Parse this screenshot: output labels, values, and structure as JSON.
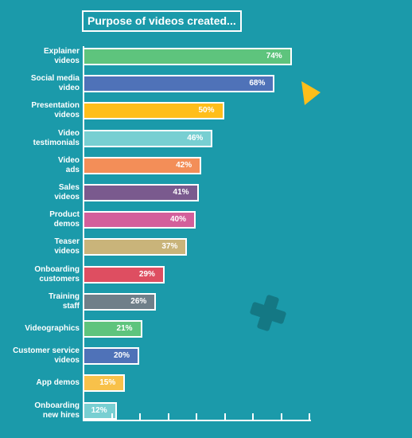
{
  "title": "Purpose of videos created...",
  "chart_data": {
    "type": "bar",
    "orientation": "horizontal",
    "title": "Purpose of videos created...",
    "categories": [
      "Explainer\nvideos",
      "Social media\nvideo",
      "Presentation\nvideos",
      "Video\ntestimonials",
      "Video\nads",
      "Sales\nvideos",
      "Product\ndemos",
      "Teaser\nvideos",
      "Onboarding\ncustomers",
      "Training\nstaff",
      "Videographics",
      "Customer service\nvideos",
      "App demos",
      "Onboarding\nnew hires"
    ],
    "values": [
      74,
      68,
      50,
      46,
      42,
      41,
      40,
      37,
      29,
      26,
      21,
      20,
      15,
      12
    ],
    "value_labels": [
      "74%",
      "68%",
      "50%",
      "46%",
      "42%",
      "41%",
      "40%",
      "37%",
      "29%",
      "26%",
      "21%",
      "20%",
      "15%",
      "12%"
    ],
    "colors": [
      "#5ec47d",
      "#4f72b8",
      "#ffbe1a",
      "#78cfd2",
      "#f38e58",
      "#7a5a8e",
      "#d35f9b",
      "#c9b47a",
      "#de4e61",
      "#6f7f89",
      "#5ec47d",
      "#4f72b8",
      "#f8c14a",
      "#78cfd2"
    ],
    "unit": "%",
    "xlim": [
      0,
      80
    ],
    "grid": false,
    "legend": "none"
  },
  "decorations": {
    "triangle_color": "#ffbe1a",
    "plus_color": "#147884"
  }
}
